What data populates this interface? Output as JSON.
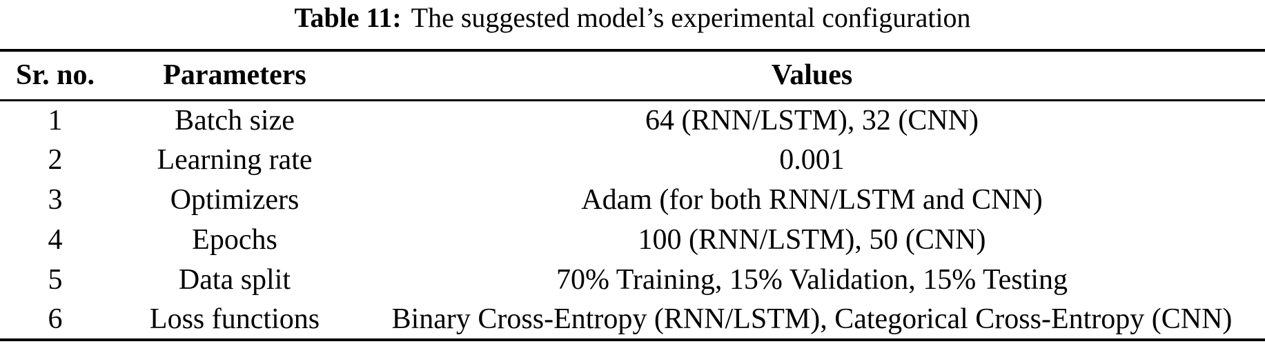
{
  "caption": {
    "label": "Table 11:",
    "text": "The suggested model’s experimental configuration"
  },
  "table": {
    "columns": {
      "sr": "Sr. no.",
      "parameters": "Parameters",
      "values": "Values"
    },
    "rows": [
      {
        "sr": "1",
        "parameter": "Batch size",
        "value": "64 (RNN/LSTM), 32 (CNN)"
      },
      {
        "sr": "2",
        "parameter": "Learning rate",
        "value": "0.001"
      },
      {
        "sr": "3",
        "parameter": "Optimizers",
        "value": "Adam (for both RNN/LSTM and CNN)"
      },
      {
        "sr": "4",
        "parameter": "Epochs",
        "value": "100 (RNN/LSTM), 50 (CNN)"
      },
      {
        "sr": "5",
        "parameter": "Data split",
        "value": "70% Training, 15% Validation, 15% Testing"
      },
      {
        "sr": "6",
        "parameter": "Loss functions",
        "value": "Binary Cross-Entropy (RNN/LSTM), Categorical Cross-Entropy (CNN)"
      }
    ]
  },
  "colors": {
    "text": "#000000",
    "background": "#ffffff",
    "rule": "#000000"
  }
}
